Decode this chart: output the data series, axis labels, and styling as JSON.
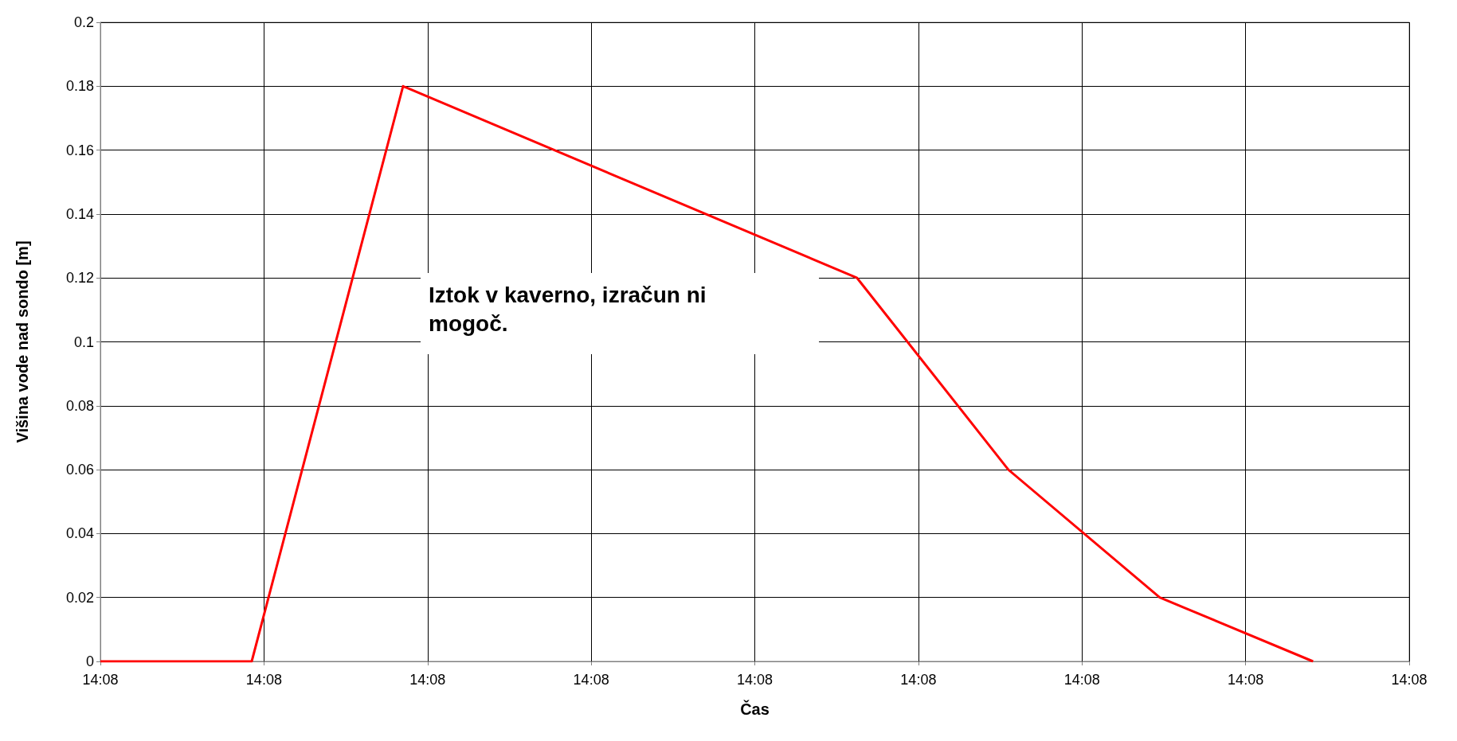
{
  "chart_data": {
    "type": "line",
    "xlabel": "Čas",
    "ylabel": "Višina vode nad sondo [m]",
    "series": [
      {
        "color": "#ff0000",
        "x": [
          14.134,
          14.13474,
          14.13548,
          14.1377,
          14.13844,
          14.13918,
          14.13993
        ],
        "values": [
          0,
          0,
          0.18,
          0.12,
          0.06,
          0.02,
          0
        ]
      }
    ],
    "xlim": [
      14.134,
      14.1404
    ],
    "xticks": [
      {
        "value": 14.134,
        "label": "14:08"
      },
      {
        "value": 14.1348,
        "label": "14:08"
      },
      {
        "value": 14.1356,
        "label": "14:08"
      },
      {
        "value": 14.1364,
        "label": "14:08"
      },
      {
        "value": 14.1372,
        "label": "14:08"
      },
      {
        "value": 14.138,
        "label": "14:08"
      },
      {
        "value": 14.1388,
        "label": "14:08"
      },
      {
        "value": 14.1396,
        "label": "14:08"
      },
      {
        "value": 14.1404,
        "label": "14:08"
      }
    ],
    "ylim": [
      0,
      0.2
    ],
    "yticks": [
      0,
      0.02,
      0.04,
      0.06,
      0.08,
      0.1,
      0.12,
      0.14,
      0.16,
      0.18,
      0.2
    ],
    "grid": true,
    "marker": "none",
    "line_style": "solid",
    "annotations": [
      "Iztok v kaverno, izračun ni mogoč."
    ]
  }
}
